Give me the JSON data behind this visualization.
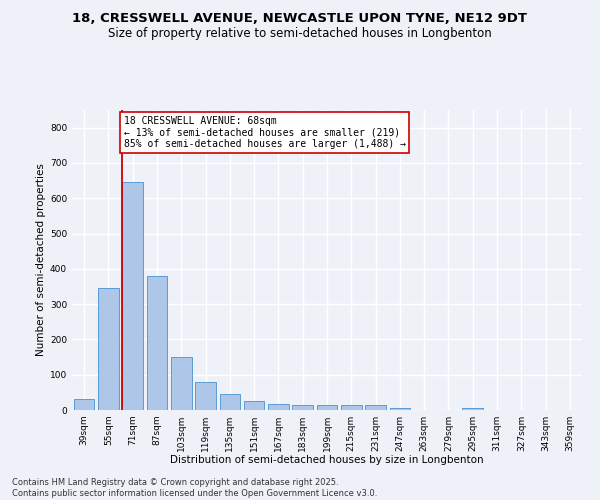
{
  "title": "18, CRESSWELL AVENUE, NEWCASTLE UPON TYNE, NE12 9DT",
  "subtitle": "Size of property relative to semi-detached houses in Longbenton",
  "xlabel": "Distribution of semi-detached houses by size in Longbenton",
  "ylabel": "Number of semi-detached properties",
  "categories": [
    "39sqm",
    "55sqm",
    "71sqm",
    "87sqm",
    "103sqm",
    "119sqm",
    "135sqm",
    "151sqm",
    "167sqm",
    "183sqm",
    "199sqm",
    "215sqm",
    "231sqm",
    "247sqm",
    "263sqm",
    "279sqm",
    "295sqm",
    "311sqm",
    "327sqm",
    "343sqm",
    "359sqm"
  ],
  "values": [
    30,
    345,
    645,
    380,
    150,
    80,
    45,
    25,
    18,
    15,
    15,
    15,
    13,
    5,
    0,
    0,
    5,
    0,
    0,
    0,
    0
  ],
  "bar_color": "#aec6e8",
  "bar_edge_color": "#5b9bd5",
  "vline_x_index": 2,
  "annotation_line1": "18 CRESSWELL AVENUE: 68sqm",
  "annotation_line2": "← 13% of semi-detached houses are smaller (219)",
  "annotation_line3": "85% of semi-detached houses are larger (1,488) →",
  "annotation_box_color": "#ffffff",
  "annotation_box_edge": "#cc0000",
  "vline_color": "#cc0000",
  "ylim": [
    0,
    850
  ],
  "yticks": [
    0,
    100,
    200,
    300,
    400,
    500,
    600,
    700,
    800
  ],
  "footer1": "Contains HM Land Registry data © Crown copyright and database right 2025.",
  "footer2": "Contains public sector information licensed under the Open Government Licence v3.0.",
  "bg_color": "#eef2f8",
  "grid_color": "#ffffff",
  "title_fontsize": 9.5,
  "subtitle_fontsize": 8.5,
  "axis_label_fontsize": 7.5,
  "tick_fontsize": 6.5,
  "annotation_fontsize": 7,
  "footer_fontsize": 6
}
